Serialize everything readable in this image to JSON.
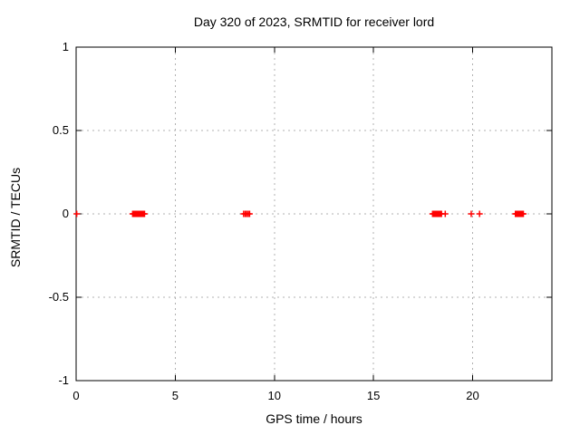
{
  "chart_data": {
    "type": "scatter",
    "title": "Day 320 of 2023, SRMTID for receiver lord",
    "xlabel": "GPS time / hours",
    "ylabel": "SRMTID / TECUs",
    "xlim": [
      0,
      24
    ],
    "ylim": [
      -1,
      1
    ],
    "xticks": {
      "values": [
        0,
        5,
        10,
        15,
        20
      ],
      "labels": [
        "0",
        "5",
        "10",
        "15",
        "20"
      ]
    },
    "yticks": {
      "values": [
        1,
        0.5,
        0,
        -0.5,
        -1
      ],
      "labels": [
        "1",
        "0.5",
        "0",
        "-0.5",
        "-1"
      ]
    },
    "grid": true,
    "legend_position": "none",
    "marker": "plus",
    "colors": {
      "marker": "#ff0000",
      "grid": "#b0b0b0",
      "axis": "#000000",
      "background": "#ffffff",
      "text": "#000000"
    },
    "series": [
      {
        "name": "SRMTID",
        "y_value": 0,
        "x": [
          0.03,
          2.85,
          2.9,
          2.95,
          3.0,
          3.05,
          3.1,
          3.15,
          3.2,
          3.25,
          3.3,
          3.35,
          3.4,
          3.45,
          8.45,
          8.53,
          8.6,
          8.68,
          8.75,
          17.98,
          18.03,
          18.08,
          18.13,
          18.18,
          18.23,
          18.28,
          18.33,
          18.38,
          18.43,
          18.62,
          19.93,
          20.35,
          22.16,
          22.21,
          22.26,
          22.31,
          22.36,
          22.41,
          22.46,
          22.51,
          22.56
        ]
      }
    ]
  }
}
